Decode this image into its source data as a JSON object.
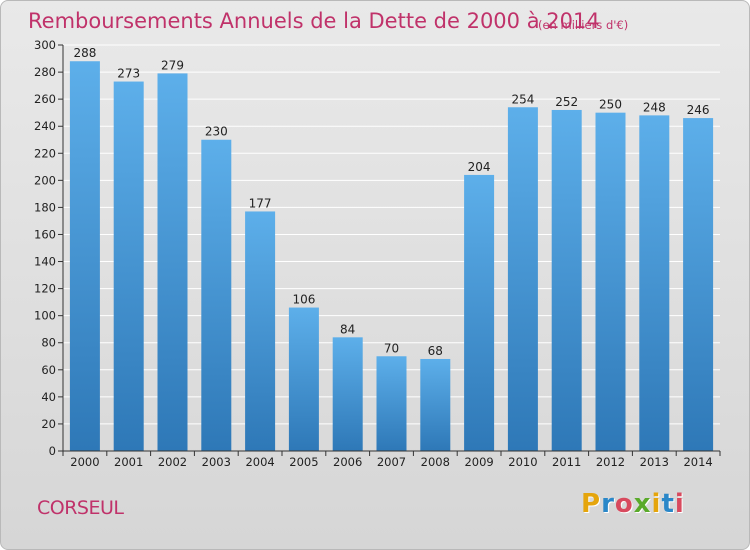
{
  "header": {
    "title": "Remboursements Annuels de la Dette de 2000 à 2014",
    "subtitle": "(en milliers d'€)"
  },
  "footer": {
    "commune": "CORSEUL",
    "logo_text": "Proxiti"
  },
  "colors": {
    "title": "#c0326a",
    "bar_light": "#5dafea",
    "bar_dark": "#2e78b7",
    "grid": "#ffffff"
  },
  "chart_data": {
    "type": "bar",
    "title": "Remboursements Annuels de la Dette de 2000 à 2014",
    "subtitle": "(en milliers d'€)",
    "xlabel": "",
    "ylabel": "",
    "categories": [
      "2000",
      "2001",
      "2002",
      "2003",
      "2004",
      "2005",
      "2006",
      "2007",
      "2008",
      "2009",
      "2010",
      "2011",
      "2012",
      "2013",
      "2014"
    ],
    "values": [
      288,
      273,
      279,
      230,
      177,
      106,
      84,
      70,
      68,
      204,
      254,
      252,
      250,
      248,
      246
    ],
    "ylim": [
      0,
      300
    ],
    "yticks": [
      0,
      20,
      40,
      60,
      80,
      100,
      120,
      140,
      160,
      180,
      200,
      220,
      240,
      260,
      280,
      300
    ],
    "grid": true,
    "legend": "none"
  }
}
